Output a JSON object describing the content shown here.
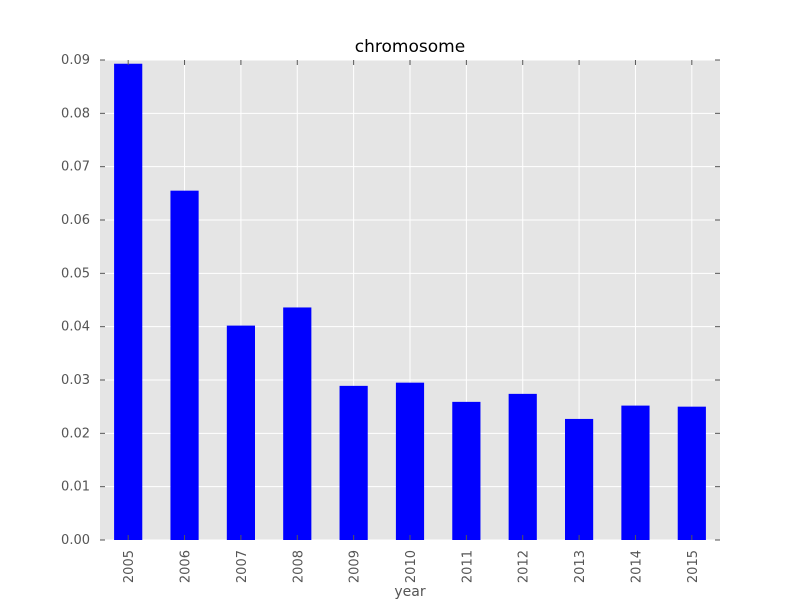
{
  "chart_data": {
    "type": "bar",
    "title": "chromosome",
    "xlabel": "year",
    "ylabel": "",
    "categories": [
      "2005",
      "2006",
      "2007",
      "2008",
      "2009",
      "2010",
      "2011",
      "2012",
      "2013",
      "2014",
      "2015"
    ],
    "values": [
      0.0893,
      0.0655,
      0.0402,
      0.0436,
      0.0289,
      0.0295,
      0.0259,
      0.0274,
      0.0227,
      0.0252,
      0.025
    ],
    "ylim": [
      0,
      0.09
    ],
    "yticks": [
      "0.00",
      "0.01",
      "0.02",
      "0.03",
      "0.04",
      "0.05",
      "0.06",
      "0.07",
      "0.08",
      "0.09"
    ],
    "grid": true,
    "legend": "none",
    "colors": {
      "bar": "#0000ff",
      "plot_background": "#e5e5e5",
      "grid": "#ffffff",
      "tick_label": "#555555"
    }
  }
}
